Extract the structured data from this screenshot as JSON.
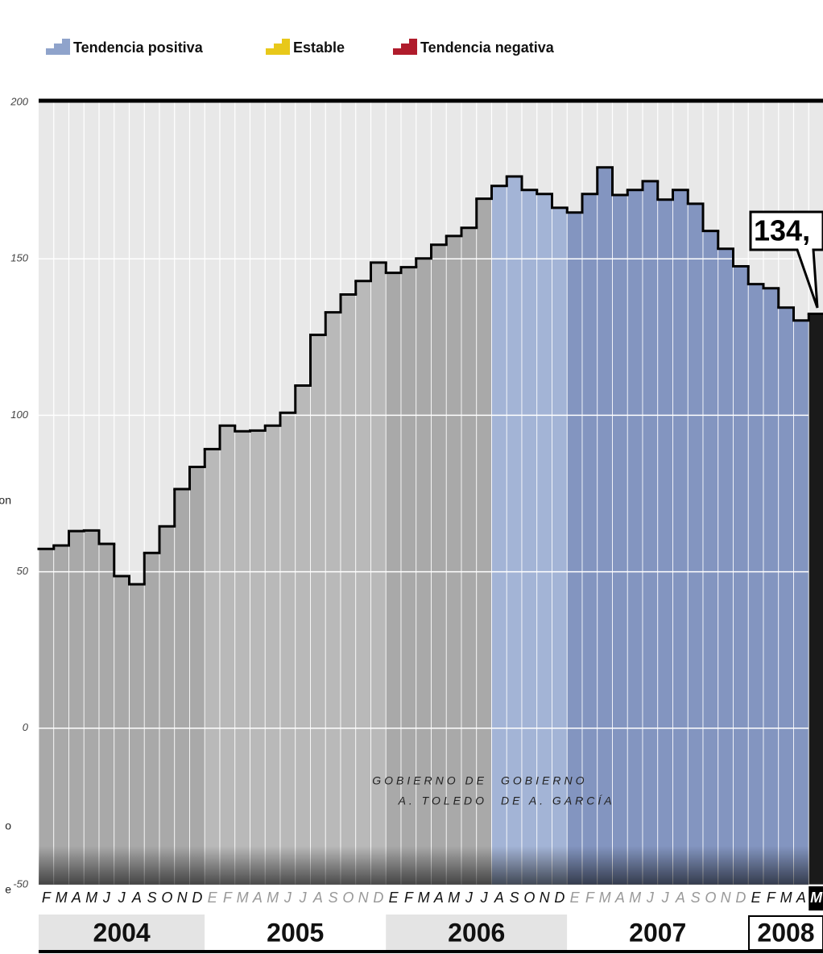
{
  "chart_data": {
    "type": "step-bar",
    "legend": [
      {
        "name": "Tendencia positiva",
        "color": "#8fa3cb"
      },
      {
        "name": "Estable",
        "color": "#e8c81a"
      },
      {
        "name": "Tendencia negativa",
        "color": "#b01c2c"
      }
    ],
    "years": [
      {
        "name": "2004",
        "categories": [
          "F",
          "M",
          "A",
          "M",
          "J",
          "J",
          "A",
          "S",
          "O",
          "N",
          "D"
        ]
      },
      {
        "name": "2005",
        "categories": [
          "E",
          "F",
          "M",
          "A",
          "M",
          "J",
          "J",
          "A",
          "S",
          "O",
          "N",
          "D"
        ]
      },
      {
        "name": "2006",
        "categories": [
          "E",
          "F",
          "M",
          "A",
          "M",
          "J",
          "J",
          "A",
          "S",
          "O",
          "N",
          "D"
        ]
      },
      {
        "name": "2007",
        "categories": [
          "E",
          "F",
          "M",
          "A",
          "M",
          "J",
          "J",
          "A",
          "S",
          "O",
          "N",
          "D"
        ]
      },
      {
        "name": "2008",
        "categories": [
          "E",
          "F",
          "M",
          "A",
          "M"
        ]
      }
    ],
    "series": [
      {
        "values": [
          57.3,
          58.4,
          63,
          63.2,
          58.9,
          48.6,
          46,
          56,
          64.5,
          76.4,
          83.5,
          89.2,
          96.7,
          94.9,
          95.1,
          96.7,
          100.8,
          109.5,
          125.7,
          132.9,
          138.6,
          142.9,
          148.8,
          145.5,
          147.3,
          150.1,
          154.5,
          157.3,
          159.9,
          169.2,
          173.3,
          176.3,
          172,
          170.7,
          166.3,
          164.8,
          170.7,
          179.2,
          170.4,
          172,
          174.8,
          168.9,
          172,
          167.6,
          158.9,
          153.2,
          147.6,
          141.9,
          140.6,
          134.4,
          130.3,
          132.4
        ],
        "colors": [
          "#a9a9a9",
          "#a9a9a9",
          "#a9a9a9",
          "#a9a9a9",
          "#a9a9a9",
          "#a9a9a9",
          "#a9a9a9",
          "#a9a9a9",
          "#a9a9a9",
          "#a9a9a9",
          "#a9a9a9",
          "#b9b9b9",
          "#b9b9b9",
          "#b9b9b9",
          "#b9b9b9",
          "#b9b9b9",
          "#b9b9b9",
          "#b9b9b9",
          "#b9b9b9",
          "#b9b9b9",
          "#b9b9b9",
          "#b9b9b9",
          "#b9b9b9",
          "#a9a9a9",
          "#a9a9a9",
          "#a9a9a9",
          "#a9a9a9",
          "#a9a9a9",
          "#a9a9a9",
          "#a9a9a9",
          "#a3b4d6",
          "#a3b4d6",
          "#a3b4d6",
          "#a3b4d6",
          "#a3b4d6",
          "#8395c0",
          "#8395c0",
          "#8395c0",
          "#8395c0",
          "#8395c0",
          "#8395c0",
          "#8395c0",
          "#8395c0",
          "#8395c0",
          "#8395c0",
          "#8395c0",
          "#8395c0",
          "#8395c0",
          "#8395c0",
          "#8395c0",
          "#8395c0",
          "#1a1a1a"
        ]
      }
    ],
    "ylim": [
      -50,
      200
    ],
    "yticks": [
      -50,
      0,
      50,
      100,
      150,
      200
    ],
    "grid": true,
    "callout": "134,",
    "annotations": [
      [
        "GOBIERNO DE",
        "A. TOLEDO"
      ],
      [
        "GOBIERNO",
        "DE A. GARCÍA"
      ]
    ],
    "side_text": [
      "on",
      "o",
      "e"
    ]
  }
}
